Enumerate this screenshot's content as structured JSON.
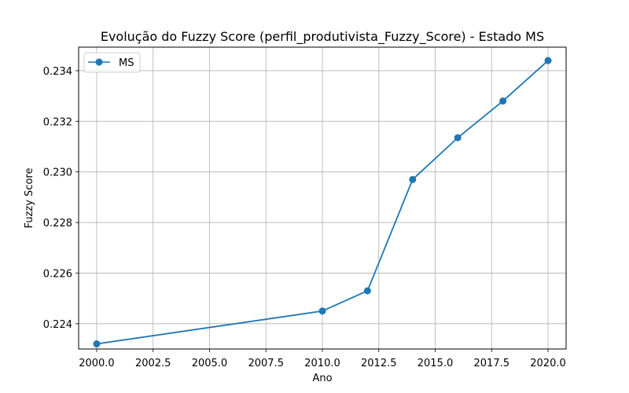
{
  "chart_data": {
    "type": "line",
    "title": "Evolução do Fuzzy Score (perfil_produtivista_Fuzzy_Score) - Estado MS",
    "xlabel": "Ano",
    "ylabel": "Fuzzy Score",
    "xlim": [
      1999.2,
      2020.8
    ],
    "ylim": [
      0.223,
      0.23493
    ],
    "x_ticks": [
      2000.0,
      2002.5,
      2005.0,
      2007.5,
      2010.0,
      2012.5,
      2015.0,
      2017.5,
      2020.0
    ],
    "x_tick_labels": [
      "2000.0",
      "2002.5",
      "2005.0",
      "2007.5",
      "2010.0",
      "2012.5",
      "2015.0",
      "2017.5",
      "2020.0"
    ],
    "y_ticks": [
      0.224,
      0.226,
      0.228,
      0.23,
      0.232,
      0.234
    ],
    "y_tick_labels": [
      "0.224",
      "0.226",
      "0.228",
      "0.230",
      "0.232",
      "0.234"
    ],
    "grid": true,
    "legend_position": "top-left",
    "series": [
      {
        "name": "MS",
        "color": "#1f77b4",
        "marker": "circle",
        "x": [
          2000,
          2010,
          2012,
          2014,
          2016,
          2018,
          2020
        ],
        "y": [
          0.2232,
          0.2245,
          0.2253,
          0.2297,
          0.23135,
          0.2328,
          0.2344
        ]
      }
    ]
  }
}
